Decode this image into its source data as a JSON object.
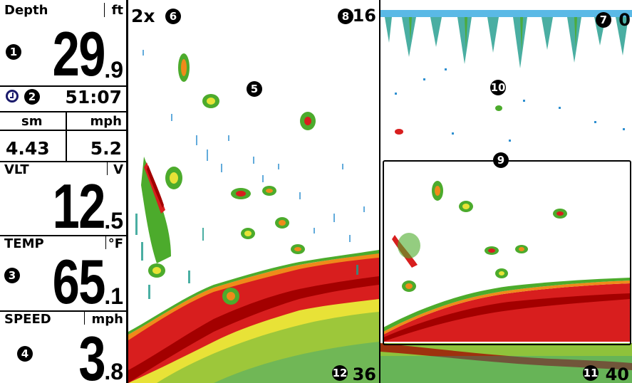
{
  "data_boxes": {
    "depth": {
      "label": "Depth",
      "unit": "ft",
      "integer": "29",
      "decimal": ".9",
      "marker": "1"
    },
    "timer": {
      "icon": "clock-icon",
      "marker": "2",
      "value": "51:07"
    },
    "distance": {
      "unit": "sm",
      "value": "4.43"
    },
    "speed_small": {
      "unit": "mph",
      "value": "5.2"
    },
    "voltage": {
      "label": "VLT",
      "unit": "V",
      "integer": "12",
      "decimal": ".5"
    },
    "temperature": {
      "label": "TEMP",
      "unit": "°F",
      "integer": "65",
      "decimal": ".1",
      "marker": "3"
    },
    "speed": {
      "label": "SPEED",
      "unit": "mph",
      "integer": "3",
      "decimal": ".8",
      "marker": "4"
    }
  },
  "zoom_view": {
    "zoom_level": "2x",
    "zoom_marker": "6",
    "view_marker": "5",
    "upper_depth_marker": "8",
    "upper_depth": "16",
    "lower_depth_marker": "12",
    "lower_depth": "36"
  },
  "full_view": {
    "top_depth_marker": "7",
    "top_depth": "0",
    "view_marker": "10",
    "zoom_box_marker": "9",
    "bottom_depth_marker": "11",
    "bottom_depth": "40"
  },
  "colors": {
    "sonar_strong": "#a30000",
    "sonar_red": "#d81e1e",
    "sonar_orange": "#ef8a1a",
    "sonar_yellow": "#e8e237",
    "sonar_green": "#4cab2c",
    "sonar_teal": "#1d9b8c",
    "sonar_blue": "#2e8fd0",
    "surface_clutter": "#5ab9e6",
    "frame": "#000000"
  }
}
